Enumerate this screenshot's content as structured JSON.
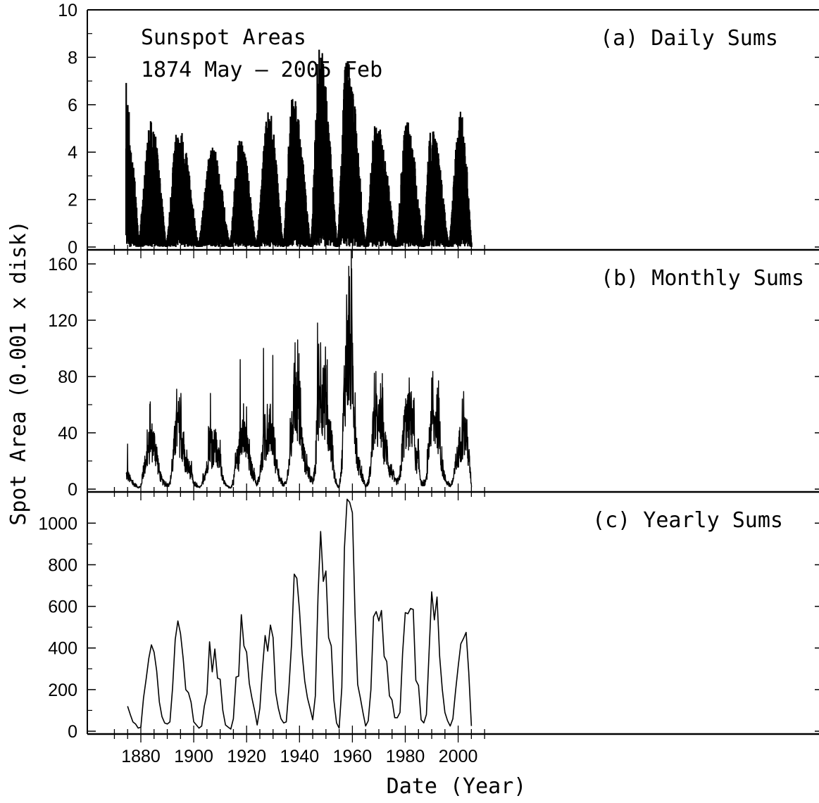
{
  "figure": {
    "ylabel": "Spot Area (0.001 x disk)",
    "xlabel": "Date (Year)",
    "annotation_line1": "Sunspot Areas",
    "annotation_line2": "1874 May – 2005 Feb"
  },
  "chart_data": [
    {
      "type": "line",
      "title": "(a) Daily Sums",
      "xlim": [
        1870,
        2010
      ],
      "ylim": [
        0,
        10
      ],
      "yticks": [
        0,
        2,
        4,
        6,
        8,
        10
      ],
      "cycles": [
        {
          "min": 1878.9,
          "max": 1884.0,
          "end": 1889.6,
          "peak": 5.2,
          "base": 0.7
        },
        {
          "min": 1889.6,
          "max": 1894.1,
          "end": 1901.7,
          "peak": 5.0,
          "base": 0.8
        },
        {
          "min": 1901.7,
          "max": 1907.0,
          "end": 1913.6,
          "peak": 4.1,
          "base": 0.7
        },
        {
          "min": 1913.6,
          "max": 1917.6,
          "end": 1923.6,
          "peak": 4.5,
          "base": 0.9
        },
        {
          "min": 1923.6,
          "max": 1928.4,
          "end": 1933.8,
          "peak": 5.7,
          "base": 0.9
        },
        {
          "min": 1933.8,
          "max": 1937.4,
          "end": 1944.2,
          "peak": 6.3,
          "base": 1.2
        },
        {
          "min": 1944.2,
          "max": 1947.5,
          "end": 1954.3,
          "peak": 8.4,
          "base": 1.5
        },
        {
          "min": 1954.3,
          "max": 1957.9,
          "end": 1964.9,
          "peak": 8.0,
          "base": 2.0
        },
        {
          "min": 1964.9,
          "max": 1968.9,
          "end": 1976.5,
          "peak": 5.2,
          "base": 1.0
        },
        {
          "min": 1976.5,
          "max": 1980.5,
          "end": 1986.8,
          "peak": 5.3,
          "base": 1.1
        },
        {
          "min": 1986.8,
          "max": 1989.9,
          "end": 1996.4,
          "peak": 5.0,
          "base": 1.1
        },
        {
          "min": 1996.4,
          "max": 2001.0,
          "end": 2005.1,
          "peak": 5.7,
          "base": 0.9
        }
      ],
      "series": [
        {
          "start": 1874.4,
          "end": 2005.1
        }
      ]
    },
    {
      "type": "line",
      "title": "(b) Monthly Sums",
      "xlim": [
        1870,
        2010
      ],
      "ylim": [
        0,
        170
      ],
      "yticks": [
        0,
        40,
        80,
        120,
        160
      ],
      "peaks": [
        {
          "x": 1875.0,
          "y": 32
        },
        {
          "x": 1883.6,
          "y": 62
        },
        {
          "x": 1893.6,
          "y": 71
        },
        {
          "x": 1906.3,
          "y": 68
        },
        {
          "x": 1917.6,
          "y": 92
        },
        {
          "x": 1926.4,
          "y": 100
        },
        {
          "x": 1929.9,
          "y": 95
        },
        {
          "x": 1938.3,
          "y": 104
        },
        {
          "x": 1946.8,
          "y": 118
        },
        {
          "x": 1949.8,
          "y": 101
        },
        {
          "x": 1957.8,
          "y": 138
        },
        {
          "x": 1958.9,
          "y": 151
        },
        {
          "x": 1968.4,
          "y": 66
        },
        {
          "x": 1981.5,
          "y": 79
        },
        {
          "x": 1990.0,
          "y": 79
        },
        {
          "x": 2001.6,
          "y": 64
        }
      ],
      "series": [
        {
          "start": 1874.4,
          "end": 2005.1
        }
      ]
    },
    {
      "type": "line",
      "title": "(c) Yearly Sums",
      "xlim": [
        1870,
        2010
      ],
      "ylim": [
        0,
        1150
      ],
      "yticks": [
        0,
        200,
        400,
        600,
        800,
        1000
      ],
      "series": [
        {
          "x": [
            1875,
            1876,
            1877,
            1878,
            1879,
            1880,
            1881,
            1882,
            1883,
            1884,
            1885,
            1886,
            1887,
            1888,
            1889,
            1890,
            1891,
            1892,
            1893,
            1894,
            1895,
            1896,
            1897,
            1898,
            1899,
            1900,
            1901,
            1902,
            1903,
            1904,
            1905,
            1906,
            1907,
            1908,
            1909,
            1910,
            1911,
            1912,
            1913,
            1914,
            1915,
            1916,
            1917,
            1918,
            1919,
            1920,
            1921,
            1922,
            1923,
            1924,
            1925,
            1926,
            1927,
            1928,
            1929,
            1930,
            1931,
            1932,
            1933,
            1934,
            1935,
            1936,
            1937,
            1938,
            1939,
            1940,
            1941,
            1942,
            1943,
            1944,
            1945,
            1946,
            1947,
            1948,
            1949,
            1950,
            1951,
            1952,
            1953,
            1954,
            1955,
            1956,
            1957,
            1958,
            1959,
            1960,
            1961,
            1962,
            1963,
            1964,
            1965,
            1966,
            1967,
            1968,
            1969,
            1970,
            1971,
            1972,
            1973,
            1974,
            1975,
            1976,
            1977,
            1978,
            1979,
            1980,
            1981,
            1982,
            1983,
            1984,
            1985,
            1986,
            1987,
            1988,
            1989,
            1990,
            1991,
            1992,
            1993,
            1994,
            1995,
            1996,
            1997,
            1998,
            1999,
            2000,
            2001,
            2002,
            2003,
            2004,
            2005
          ],
          "y": [
            120,
            80,
            45,
            35,
            15,
            20,
            160,
            250,
            350,
            415,
            380,
            290,
            140,
            70,
            40,
            35,
            45,
            210,
            440,
            530,
            470,
            350,
            200,
            185,
            140,
            45,
            30,
            15,
            25,
            120,
            180,
            430,
            285,
            395,
            255,
            250,
            100,
            30,
            20,
            10,
            60,
            260,
            265,
            560,
            410,
            380,
            230,
            160,
            100,
            30,
            110,
            300,
            460,
            385,
            510,
            450,
            185,
            110,
            60,
            40,
            45,
            210,
            420,
            755,
            735,
            580,
            370,
            240,
            160,
            110,
            55,
            170,
            650,
            960,
            720,
            770,
            450,
            410,
            150,
            40,
            15,
            210,
            880,
            1115,
            1100,
            1050,
            560,
            225,
            160,
            90,
            25,
            50,
            200,
            550,
            575,
            530,
            580,
            360,
            335,
            170,
            150,
            65,
            65,
            90,
            375,
            570,
            565,
            590,
            585,
            245,
            220,
            55,
            40,
            80,
            380,
            670,
            535,
            645,
            360,
            200,
            90,
            50,
            25,
            60,
            190,
            310,
            420,
            445,
            475,
            285,
            25
          ]
        }
      ]
    }
  ]
}
